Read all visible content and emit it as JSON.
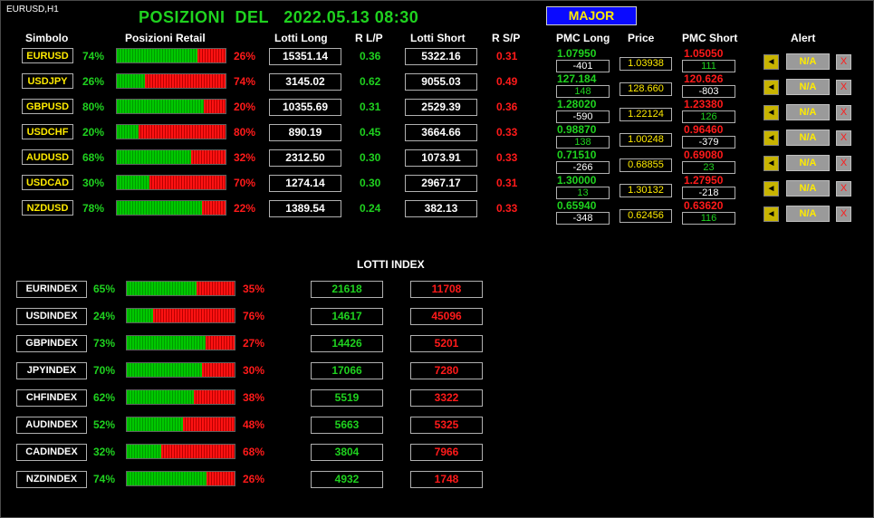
{
  "window": {
    "title": "EURUSD,H1"
  },
  "header": {
    "title": "POSIZIONI  DEL   2022.05.13 08:30",
    "major_label": "MAJOR"
  },
  "columns": {
    "symbol": "Simbolo",
    "retail": "Posizioni Retail",
    "lots_long": "Lotti Long",
    "ratio_lp": "R L/P",
    "lots_short": "Lotti Short",
    "ratio_sp": "R S/P",
    "pmc_long": "PMC Long",
    "price": "Price",
    "pmc_short": "PMC Short",
    "alert": "Alert"
  },
  "colors": {
    "long": "#1fd21f",
    "short": "#ff1a1a",
    "symbol": "#ffeb00",
    "major_bg": "#0a0aff"
  },
  "pairs": [
    {
      "symbol": "EURUSD",
      "long_pct": "74%",
      "short_pct": "26%",
      "long_share": 0.74,
      "lots_long": "15351.14",
      "ratio_lp": "0.36",
      "lots_short": "5322.16",
      "ratio_sp": "0.31",
      "pmc_long": "1.07950",
      "pmc_long_diff": "-401",
      "price": "1.03938",
      "pmc_short": "1.05050",
      "pmc_short_diff": "111",
      "alert": "N/A",
      "close": "X"
    },
    {
      "symbol": "USDJPY",
      "long_pct": "26%",
      "short_pct": "74%",
      "long_share": 0.26,
      "lots_long": "3145.02",
      "ratio_lp": "0.62",
      "lots_short": "9055.03",
      "ratio_sp": "0.49",
      "pmc_long": "127.184",
      "pmc_long_diff": "148",
      "price": "128.660",
      "pmc_short": "120.626",
      "pmc_short_diff": "-803",
      "alert": "N/A",
      "close": "X"
    },
    {
      "symbol": "GBPUSD",
      "long_pct": "80%",
      "short_pct": "20%",
      "long_share": 0.8,
      "lots_long": "10355.69",
      "ratio_lp": "0.31",
      "lots_short": "2529.39",
      "ratio_sp": "0.36",
      "pmc_long": "1.28020",
      "pmc_long_diff": "-590",
      "price": "1.22124",
      "pmc_short": "1.23380",
      "pmc_short_diff": "126",
      "alert": "N/A",
      "close": "X"
    },
    {
      "symbol": "USDCHF",
      "long_pct": "20%",
      "short_pct": "80%",
      "long_share": 0.2,
      "lots_long": "890.19",
      "ratio_lp": "0.45",
      "lots_short": "3664.66",
      "ratio_sp": "0.33",
      "pmc_long": "0.98870",
      "pmc_long_diff": "138",
      "price": "1.00248",
      "pmc_short": "0.96460",
      "pmc_short_diff": "-379",
      "alert": "N/A",
      "close": "X"
    },
    {
      "symbol": "AUDUSD",
      "long_pct": "68%",
      "short_pct": "32%",
      "long_share": 0.68,
      "lots_long": "2312.50",
      "ratio_lp": "0.30",
      "lots_short": "1073.91",
      "ratio_sp": "0.33",
      "pmc_long": "0.71510",
      "pmc_long_diff": "-266",
      "price": "0.68855",
      "pmc_short": "0.69080",
      "pmc_short_diff": "23",
      "alert": "N/A",
      "close": "X"
    },
    {
      "symbol": "USDCAD",
      "long_pct": "30%",
      "short_pct": "70%",
      "long_share": 0.3,
      "lots_long": "1274.14",
      "ratio_lp": "0.30",
      "lots_short": "2967.17",
      "ratio_sp": "0.31",
      "pmc_long": "1.30000",
      "pmc_long_diff": "13",
      "price": "1.30132",
      "pmc_short": "1.27950",
      "pmc_short_diff": "-218",
      "alert": "N/A",
      "close": "X"
    },
    {
      "symbol": "NZDUSD",
      "long_pct": "78%",
      "short_pct": "22%",
      "long_share": 0.78,
      "lots_long": "1389.54",
      "ratio_lp": "0.24",
      "lots_short": "382.13",
      "ratio_sp": "0.33",
      "pmc_long": "0.65940",
      "pmc_long_diff": "-348",
      "price": "0.62456",
      "pmc_short": "0.63620",
      "pmc_short_diff": "116",
      "alert": "N/A",
      "close": "X"
    }
  ],
  "index_section": {
    "title": "LOTTI INDEX",
    "rows": [
      {
        "name": "EURINDEX",
        "long_pct": "65%",
        "short_pct": "35%",
        "long_share": 0.65,
        "lots_long": "21618",
        "lots_short": "11708"
      },
      {
        "name": "USDINDEX",
        "long_pct": "24%",
        "short_pct": "76%",
        "long_share": 0.24,
        "lots_long": "14617",
        "lots_short": "45096"
      },
      {
        "name": "GBPINDEX",
        "long_pct": "73%",
        "short_pct": "27%",
        "long_share": 0.73,
        "lots_long": "14426",
        "lots_short": "5201"
      },
      {
        "name": "JPYINDEX",
        "long_pct": "70%",
        "short_pct": "30%",
        "long_share": 0.7,
        "lots_long": "17066",
        "lots_short": "7280"
      },
      {
        "name": "CHFINDEX",
        "long_pct": "62%",
        "short_pct": "38%",
        "long_share": 0.62,
        "lots_long": "5519",
        "lots_short": "3322"
      },
      {
        "name": "AUDINDEX",
        "long_pct": "52%",
        "short_pct": "48%",
        "long_share": 0.52,
        "lots_long": "5663",
        "lots_short": "5325"
      },
      {
        "name": "CADINDEX",
        "long_pct": "32%",
        "short_pct": "68%",
        "long_share": 0.32,
        "lots_long": "3804",
        "lots_short": "7966"
      },
      {
        "name": "NZDINDEX",
        "long_pct": "74%",
        "short_pct": "26%",
        "long_share": 0.74,
        "lots_long": "4932",
        "lots_short": "1748"
      }
    ]
  }
}
